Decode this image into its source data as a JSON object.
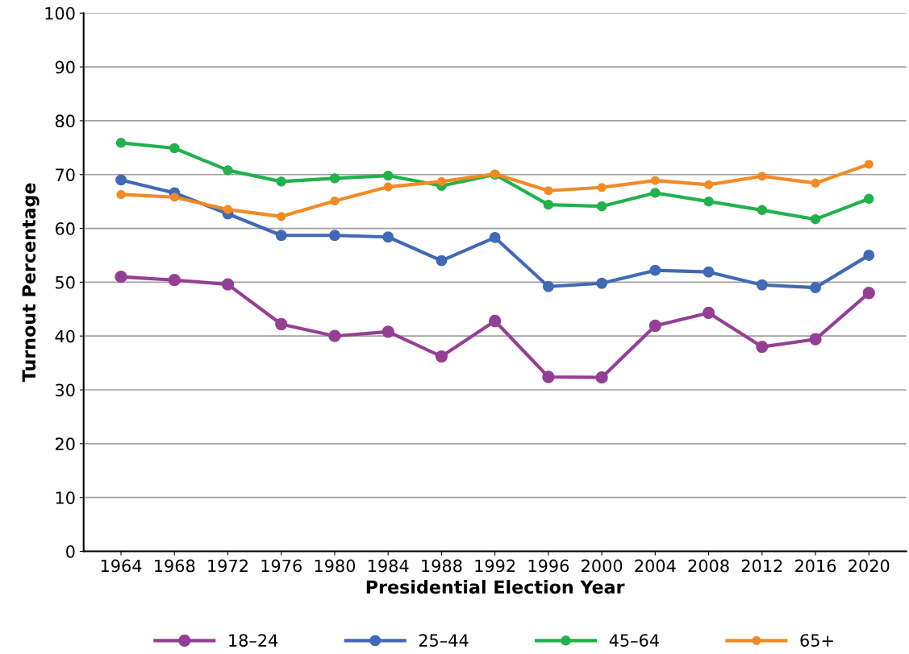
{
  "chart_data": {
    "type": "line",
    "xlabel": "Presidential Election Year",
    "ylabel": "Turnout Percentage",
    "categories": [
      "1964",
      "1968",
      "1972",
      "1976",
      "1980",
      "1984",
      "1988",
      "1992",
      "1996",
      "2000",
      "2004",
      "2008",
      "2012",
      "2016",
      "2020"
    ],
    "series": [
      {
        "name": "18–24",
        "color": "#943f95",
        "values": [
          51.0,
          50.4,
          49.6,
          42.2,
          40.0,
          40.8,
          36.2,
          42.8,
          32.4,
          32.3,
          41.9,
          44.3,
          38.0,
          39.4,
          48.0
        ]
      },
      {
        "name": "25–44",
        "color": "#4169b5",
        "values": [
          69.0,
          66.6,
          62.7,
          58.7,
          58.7,
          58.4,
          54.0,
          58.3,
          49.2,
          49.8,
          52.2,
          51.9,
          49.5,
          49.0,
          55.0
        ]
      },
      {
        "name": "45–64",
        "color": "#22b14c",
        "values": [
          75.9,
          74.9,
          70.8,
          68.7,
          69.3,
          69.8,
          67.9,
          70.0,
          64.4,
          64.1,
          66.6,
          65.0,
          63.4,
          61.7,
          65.5
        ]
      },
      {
        "name": "65+",
        "color": "#f38a23",
        "values": [
          66.3,
          65.8,
          63.5,
          62.2,
          65.1,
          67.7,
          68.7,
          70.1,
          67.0,
          67.6,
          68.9,
          68.1,
          69.7,
          68.4,
          71.9
        ]
      }
    ],
    "ylim": [
      0,
      100
    ],
    "yticks": [
      0,
      10,
      20,
      30,
      40,
      50,
      60,
      70,
      80,
      90,
      100
    ],
    "grid": "y",
    "legend": "bottom",
    "marker": "circle",
    "line_style": "solid"
  }
}
